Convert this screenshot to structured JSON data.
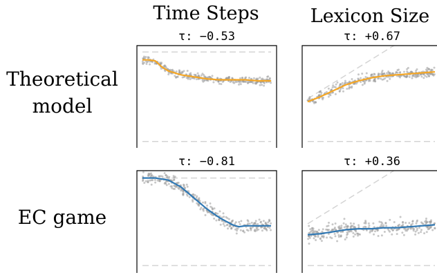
{
  "figure": {
    "column_titles": [
      "Time Steps",
      "Lexicon Size"
    ],
    "row_labels": [
      [
        "Theoretical",
        "model"
      ],
      [
        "EC game"
      ]
    ]
  },
  "colors": {
    "theoretical": "#f5a623",
    "ec_game": "#2f78b4",
    "scatter": "#9a9a9a",
    "reference": "#e0e0e0"
  },
  "chart_data": [
    {
      "type": "scatter",
      "row": "Theoretical model",
      "column": "Time Steps",
      "title": "τ: −0.53",
      "ylim": [
        0,
        1
      ],
      "trend": [
        [
          0,
          0.87
        ],
        [
          0.05,
          0.87
        ],
        [
          0.1,
          0.86
        ],
        [
          0.15,
          0.8
        ],
        [
          0.2,
          0.76
        ],
        [
          0.3,
          0.72
        ],
        [
          0.4,
          0.7
        ],
        [
          0.5,
          0.68
        ],
        [
          0.6,
          0.67
        ],
        [
          0.7,
          0.67
        ],
        [
          0.8,
          0.67
        ],
        [
          0.9,
          0.66
        ],
        [
          1,
          0.66
        ]
      ],
      "points_noise": 0.03,
      "reference": {
        "lines": [
          0.95,
          0.05
        ],
        "diagonal": false
      },
      "color": "theoretical"
    },
    {
      "type": "scatter",
      "row": "Theoretical model",
      "column": "Lexicon Size",
      "title": "τ: +0.67",
      "ylim": [
        0,
        1
      ],
      "trend": [
        [
          0,
          0.45
        ],
        [
          0.1,
          0.5
        ],
        [
          0.2,
          0.56
        ],
        [
          0.3,
          0.62
        ],
        [
          0.4,
          0.66
        ],
        [
          0.5,
          0.69
        ],
        [
          0.6,
          0.71
        ],
        [
          0.7,
          0.72
        ],
        [
          0.8,
          0.73
        ],
        [
          0.9,
          0.74
        ],
        [
          1,
          0.75
        ]
      ],
      "points_noise": 0.04,
      "reference": {
        "lines": [
          0.05
        ],
        "diagonal": true
      },
      "color": "theoretical"
    },
    {
      "type": "scatter",
      "row": "EC game",
      "column": "Time Steps",
      "title": "τ: −0.81",
      "ylim": [
        0,
        1
      ],
      "trend": [
        [
          0,
          0.94
        ],
        [
          0.1,
          0.94
        ],
        [
          0.2,
          0.92
        ],
        [
          0.3,
          0.85
        ],
        [
          0.4,
          0.74
        ],
        [
          0.5,
          0.63
        ],
        [
          0.6,
          0.54
        ],
        [
          0.7,
          0.47
        ],
        [
          0.75,
          0.45
        ],
        [
          0.8,
          0.46
        ],
        [
          0.9,
          0.46
        ],
        [
          1,
          0.46
        ]
      ],
      "points_noise": 0.05,
      "reference": {
        "lines": [
          0.94,
          0.06
        ],
        "diagonal": false
      },
      "color": "ec_game"
    },
    {
      "type": "scatter",
      "row": "EC game",
      "column": "Lexicon Size",
      "title": "τ: +0.36",
      "ylim": [
        0,
        1
      ],
      "trend": [
        [
          0,
          0.37
        ],
        [
          0.1,
          0.38
        ],
        [
          0.2,
          0.4
        ],
        [
          0.3,
          0.42
        ],
        [
          0.4,
          0.43
        ],
        [
          0.5,
          0.43
        ],
        [
          0.6,
          0.44
        ],
        [
          0.7,
          0.44
        ],
        [
          0.8,
          0.45
        ],
        [
          0.9,
          0.46
        ],
        [
          1,
          0.47
        ]
      ],
      "points_noise": 0.06,
      "reference": {
        "lines": [
          0.06
        ],
        "diagonal": true
      },
      "color": "ec_game"
    }
  ]
}
